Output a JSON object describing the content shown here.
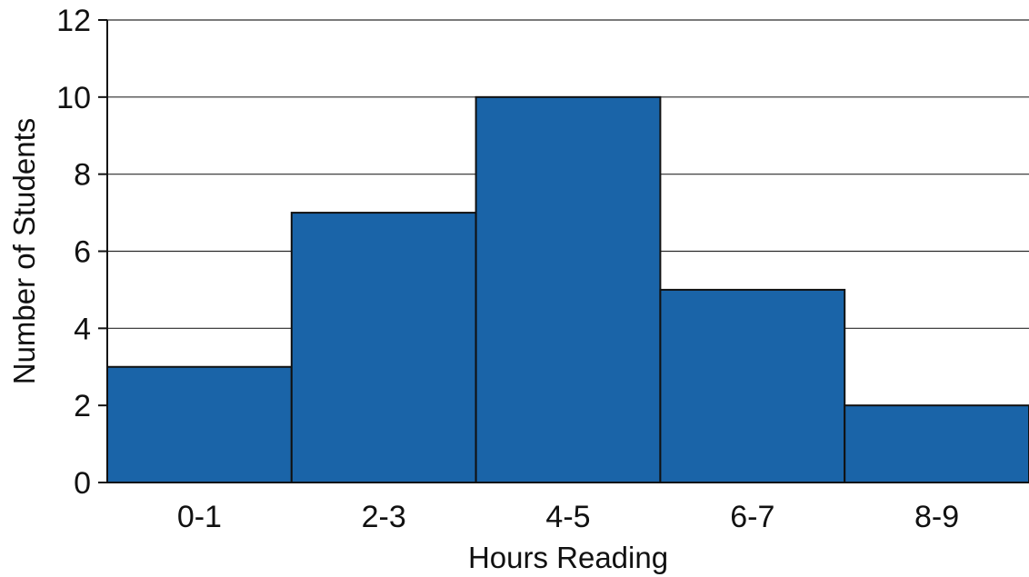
{
  "chart_data": {
    "type": "bar",
    "categories": [
      "0-1",
      "2-3",
      "4-5",
      "6-7",
      "8-9"
    ],
    "values": [
      3,
      7,
      10,
      5,
      2
    ],
    "title": "",
    "xlabel": "Hours Reading",
    "ylabel": "Number of Students",
    "ylim": [
      0,
      12
    ],
    "yticks": [
      0,
      2,
      4,
      6,
      8,
      10,
      12
    ],
    "grid": true,
    "bar_color": "#1a64a8",
    "bar_gap": 0
  }
}
